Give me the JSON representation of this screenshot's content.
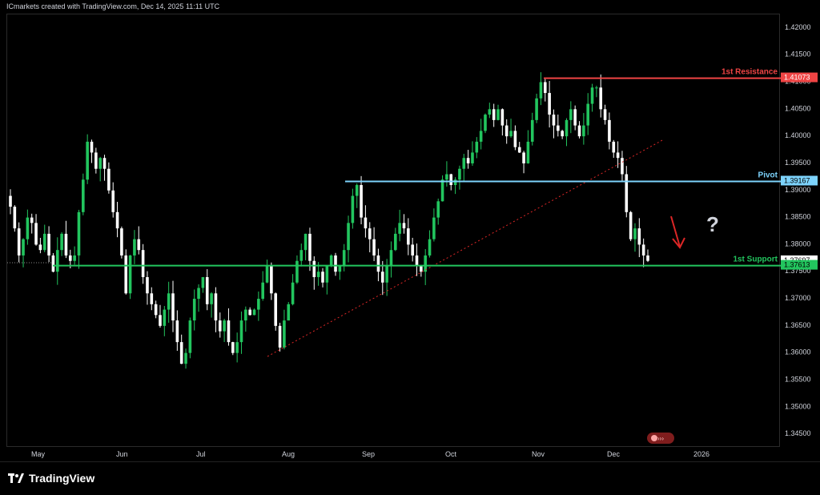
{
  "header": {
    "text": "ICmarkets created with TradingView.com, Dec 14, 2025 11:11 UTC"
  },
  "brand": {
    "name": "TradingView"
  },
  "colors": {
    "up": "#22c55e",
    "down": "#ffffff",
    "resistance": "#ef4444",
    "pivot": "#7dd3fc",
    "support": "#22c55e",
    "trend": "#dc2626"
  },
  "chart_data": {
    "type": "candlestick",
    "ylim": [
      1.3425,
      1.4225
    ],
    "y_ticks": [
      "1.42000",
      "1.41500",
      "1.41000",
      "1.40500",
      "1.40000",
      "1.39500",
      "1.39000",
      "1.38500",
      "1.38000",
      "1.37500",
      "1.37000",
      "1.36500",
      "1.36000",
      "1.35500",
      "1.35000",
      "1.34500"
    ],
    "x_ticks": [
      "May",
      "Jun",
      "Jul",
      "Aug",
      "Sep",
      "Oct",
      "Nov",
      "Dec",
      "2026"
    ],
    "levels": [
      {
        "name": "1st Resistance",
        "value": 1.41073,
        "label": "1.41073"
      },
      {
        "name": "Pivot",
        "value": 1.39167,
        "label": "1.39167"
      },
      {
        "name": "1st Support",
        "value": 1.37613,
        "label": "1.37613"
      }
    ],
    "current_price": {
      "value": 1.37697,
      "label": "1.37697"
    },
    "annotations": {
      "question": "?"
    },
    "closes": [
      1.387,
      1.383,
      1.378,
      1.381,
      1.385,
      1.384,
      1.38,
      1.379,
      1.382,
      1.378,
      1.375,
      1.379,
      1.382,
      1.378,
      1.377,
      1.378,
      1.386,
      1.392,
      1.399,
      1.397,
      1.394,
      1.396,
      1.394,
      1.39,
      1.386,
      1.383,
      1.378,
      1.371,
      1.378,
      1.381,
      1.379,
      1.374,
      1.371,
      1.369,
      1.367,
      1.365,
      1.368,
      1.371,
      1.366,
      1.362,
      1.358,
      1.36,
      1.366,
      1.37,
      1.372,
      1.374,
      1.369,
      1.371,
      1.366,
      1.364,
      1.366,
      1.362,
      1.36,
      1.362,
      1.366,
      1.368,
      1.367,
      1.368,
      1.37,
      1.373,
      1.376,
      1.371,
      1.365,
      1.361,
      1.366,
      1.369,
      1.373,
      1.377,
      1.379,
      1.382,
      1.377,
      1.374,
      1.375,
      1.373,
      1.376,
      1.378,
      1.375,
      1.376,
      1.379,
      1.384,
      1.389,
      1.391,
      1.385,
      1.383,
      1.381,
      1.378,
      1.375,
      1.373,
      1.376,
      1.379,
      1.382,
      1.384,
      1.383,
      1.38,
      1.378,
      1.376,
      1.375,
      1.378,
      1.381,
      1.385,
      1.388,
      1.392,
      1.393,
      1.391,
      1.392,
      1.394,
      1.396,
      1.395,
      1.397,
      1.399,
      1.401,
      1.404,
      1.405,
      1.403,
      1.405,
      1.402,
      1.4,
      1.401,
      1.398,
      1.397,
      1.395,
      1.399,
      1.403,
      1.407,
      1.41,
      1.408,
      1.404,
      1.402,
      1.401,
      1.4,
      1.403,
      1.405,
      1.402,
      1.4,
      1.402,
      1.406,
      1.409,
      1.409,
      1.405,
      1.403,
      1.399,
      1.397,
      1.396,
      1.393,
      1.386,
      1.381,
      1.383,
      1.38,
      1.378,
      1.377
    ]
  }
}
